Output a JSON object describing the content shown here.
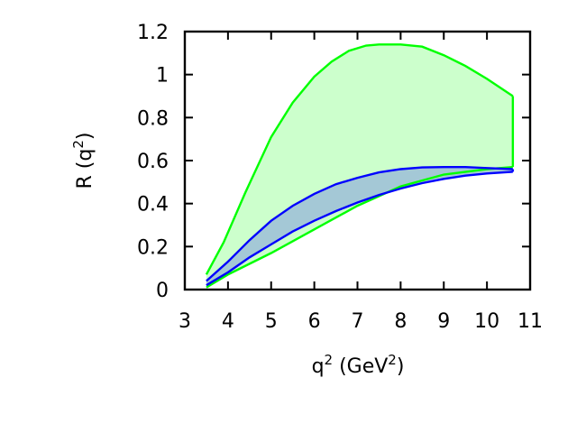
{
  "chart_data": {
    "type": "area",
    "title": "",
    "xlabel": {
      "base": "q",
      "sup": "2",
      "rest": " (GeV",
      "sup2": "2",
      "end": ")"
    },
    "ylabel": {
      "base": "R (q",
      "sup": "2",
      "end": ")"
    },
    "xlim": [
      3,
      11
    ],
    "ylim": [
      0,
      1.2
    ],
    "xticks": [
      3,
      4,
      5,
      6,
      7,
      8,
      9,
      10,
      11
    ],
    "yticks": [
      0,
      0.2,
      0.4,
      0.6,
      0.8,
      1,
      1.2
    ],
    "xtick_labels": [
      "3",
      "4",
      "5",
      "6",
      "7",
      "8",
      "9",
      "10",
      "11"
    ],
    "ytick_labels": [
      "0",
      "0.2",
      "0.4",
      "0.6",
      "0.8",
      "1",
      "1.2"
    ],
    "grid": false,
    "series": [
      {
        "color": "#00ff00",
        "fill": "#ccffcc",
        "upper": {
          "x": [
            3.5,
            3.9,
            4.4,
            5.0,
            5.5,
            6.0,
            6.4,
            6.8,
            7.2,
            7.5,
            8.0,
            8.5,
            9.0,
            9.5,
            10.0,
            10.6
          ],
          "y": [
            0.07,
            0.22,
            0.45,
            0.71,
            0.87,
            0.99,
            1.06,
            1.11,
            1.135,
            1.14,
            1.14,
            1.13,
            1.09,
            1.04,
            0.98,
            0.9
          ]
        },
        "lower": {
          "x": [
            3.5,
            4.0,
            5.0,
            6.0,
            7.0,
            8.0,
            9.0,
            10.0,
            10.6
          ],
          "y": [
            0.01,
            0.07,
            0.17,
            0.28,
            0.39,
            0.48,
            0.535,
            0.56,
            0.57
          ]
        }
      },
      {
        "color": "#0000ff",
        "fill": "#a4c8d6",
        "upper": {
          "x": [
            3.5,
            4.0,
            4.5,
            5.0,
            5.5,
            6.0,
            6.5,
            7.0,
            7.5,
            8.0,
            8.5,
            9.0,
            9.5,
            10.0,
            10.6
          ],
          "y": [
            0.04,
            0.13,
            0.23,
            0.32,
            0.39,
            0.445,
            0.49,
            0.52,
            0.545,
            0.56,
            0.568,
            0.57,
            0.57,
            0.565,
            0.56
          ]
        },
        "lower": {
          "x": [
            3.5,
            4.0,
            4.5,
            5.0,
            5.5,
            6.0,
            6.5,
            7.0,
            7.5,
            8.0,
            8.5,
            9.0,
            9.5,
            10.0,
            10.6
          ],
          "y": [
            0.02,
            0.08,
            0.15,
            0.21,
            0.27,
            0.32,
            0.365,
            0.405,
            0.44,
            0.47,
            0.495,
            0.515,
            0.53,
            0.54,
            0.548
          ]
        }
      }
    ]
  }
}
